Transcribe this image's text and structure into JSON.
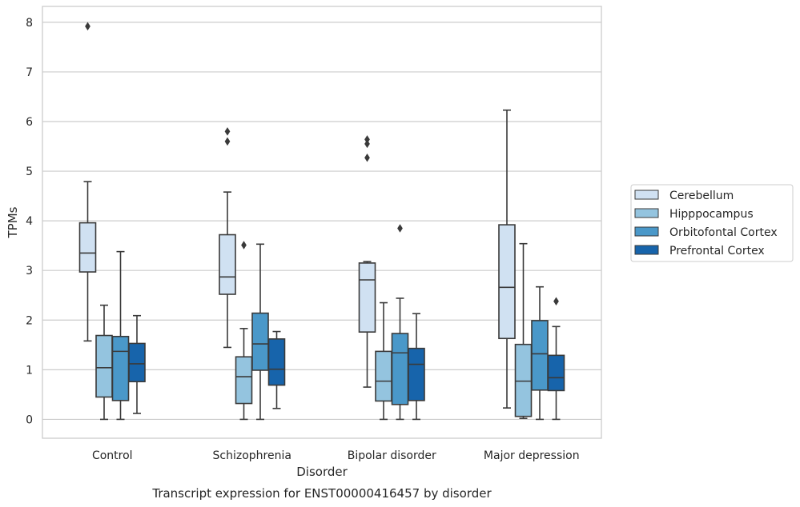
{
  "chart_data": {
    "type": "box",
    "title": "Transcript expression for ENST00000416457 by disorder",
    "xlabel": "Disorder",
    "ylabel": "TPMs",
    "ylim": [
      -0.38,
      8.32
    ],
    "yticks": [
      0,
      1,
      2,
      3,
      4,
      5,
      6,
      7,
      8
    ],
    "grid": "horizontal",
    "legend_position": "right",
    "categories": [
      "Control",
      "Schizophrenia",
      "Bipolar disorder",
      "Major depression"
    ],
    "series": [
      {
        "name": "Cerebellum",
        "color": "#d0e1f2",
        "boxes": [
          {
            "whisker_low": 1.58,
            "q1": 2.97,
            "median": 3.35,
            "q3": 3.96,
            "whisker_high": 4.79,
            "outliers": [
              7.92
            ]
          },
          {
            "whisker_low": 1.45,
            "q1": 2.52,
            "median": 2.87,
            "q3": 3.72,
            "whisker_high": 4.58,
            "outliers": [
              5.8,
              5.6
            ]
          },
          {
            "whisker_low": 0.65,
            "q1": 1.76,
            "median": 2.81,
            "q3": 3.15,
            "whisker_high": 3.18,
            "outliers": [
              5.64,
              5.55,
              5.27
            ]
          },
          {
            "whisker_low": 0.23,
            "q1": 1.63,
            "median": 2.66,
            "q3": 3.92,
            "whisker_high": 6.23,
            "outliers": []
          }
        ]
      },
      {
        "name": "Hipppocampus",
        "color": "#94c4df",
        "boxes": [
          {
            "whisker_low": 0.0,
            "q1": 0.45,
            "median": 1.04,
            "q3": 1.69,
            "whisker_high": 2.3,
            "outliers": []
          },
          {
            "whisker_low": 0.0,
            "q1": 0.32,
            "median": 0.86,
            "q3": 1.26,
            "whisker_high": 1.83,
            "outliers": [
              3.51
            ]
          },
          {
            "whisker_low": 0.0,
            "q1": 0.37,
            "median": 0.77,
            "q3": 1.37,
            "whisker_high": 2.35,
            "outliers": []
          },
          {
            "whisker_low": 0.02,
            "q1": 0.06,
            "median": 0.77,
            "q3": 1.51,
            "whisker_high": 3.54,
            "outliers": []
          }
        ]
      },
      {
        "name": "Orbitofontal Cortex",
        "color": "#4a98c9",
        "boxes": [
          {
            "whisker_low": 0.0,
            "q1": 0.38,
            "median": 1.37,
            "q3": 1.67,
            "whisker_high": 3.38,
            "outliers": []
          },
          {
            "whisker_low": 0.0,
            "q1": 0.99,
            "median": 1.52,
            "q3": 2.14,
            "whisker_high": 3.53,
            "outliers": []
          },
          {
            "whisker_low": 0.0,
            "q1": 0.3,
            "median": 1.34,
            "q3": 1.73,
            "whisker_high": 2.44,
            "outliers": [
              3.85
            ]
          },
          {
            "whisker_low": 0.0,
            "q1": 0.59,
            "median": 1.32,
            "q3": 1.99,
            "whisker_high": 2.67,
            "outliers": []
          }
        ]
      },
      {
        "name": "Prefrontal Cortex",
        "color": "#1764ab",
        "boxes": [
          {
            "whisker_low": 0.12,
            "q1": 0.76,
            "median": 1.12,
            "q3": 1.53,
            "whisker_high": 2.09,
            "outliers": []
          },
          {
            "whisker_low": 0.22,
            "q1": 0.69,
            "median": 1.01,
            "q3": 1.62,
            "whisker_high": 1.77,
            "outliers": []
          },
          {
            "whisker_low": 0.0,
            "q1": 0.38,
            "median": 1.11,
            "q3": 1.43,
            "whisker_high": 2.13,
            "outliers": []
          },
          {
            "whisker_low": 0.0,
            "q1": 0.58,
            "median": 0.84,
            "q3": 1.29,
            "whisker_high": 1.87,
            "outliers": [
              2.38
            ]
          }
        ]
      }
    ]
  }
}
